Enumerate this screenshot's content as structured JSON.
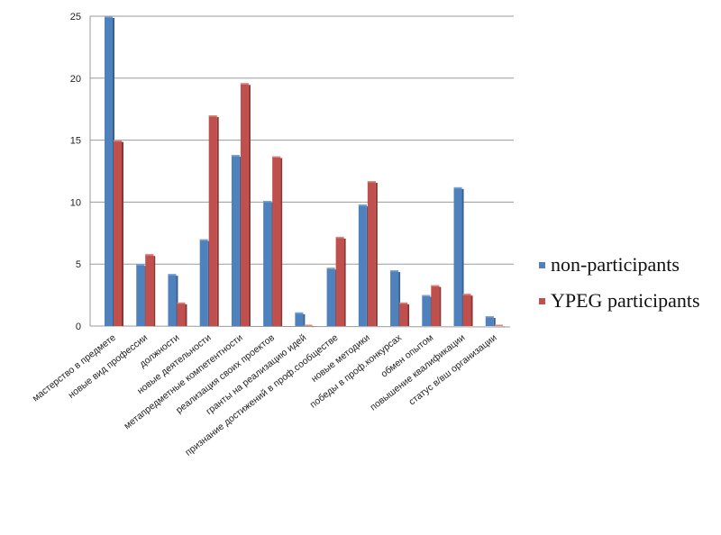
{
  "chart_data": {
    "type": "bar",
    "categories": [
      "мастерство в предмете",
      "новые вид профессии",
      "должности",
      "новые деятельности",
      "метапредметные компетентности",
      "реализация своих проектов",
      "гранты на реализацию идей",
      "признание достижений в проф.сообществе",
      "новые методики",
      "победы в проф.конкурсах",
      "обмен опытом",
      "повышение квалификации",
      "статус в/вш организации"
    ],
    "series": [
      {
        "name": "non-participants",
        "color": "#4f81bd",
        "values": [
          25,
          5,
          4.2,
          7,
          13.8,
          10.1,
          1.1,
          4.7,
          9.8,
          4.5,
          2.5,
          11.2,
          0.8
        ]
      },
      {
        "name": "YPEG participants",
        "color": "#c0504d",
        "values": [
          15,
          5.8,
          1.9,
          17,
          19.6,
          13.7,
          0.1,
          7.2,
          11.7,
          1.9,
          3.3,
          2.6,
          0.1
        ]
      }
    ],
    "ylim": [
      0,
      25
    ],
    "yticks": [
      "0",
      "5",
      "10",
      "15",
      "20",
      "25"
    ],
    "grid": true,
    "legend_position": "right",
    "title": "",
    "xlabel": "",
    "ylabel": ""
  },
  "legend": {
    "items": [
      {
        "label": "non-participants",
        "color": "#4f81bd"
      },
      {
        "label": "YPEG participants",
        "color": "#c0504d"
      }
    ]
  }
}
